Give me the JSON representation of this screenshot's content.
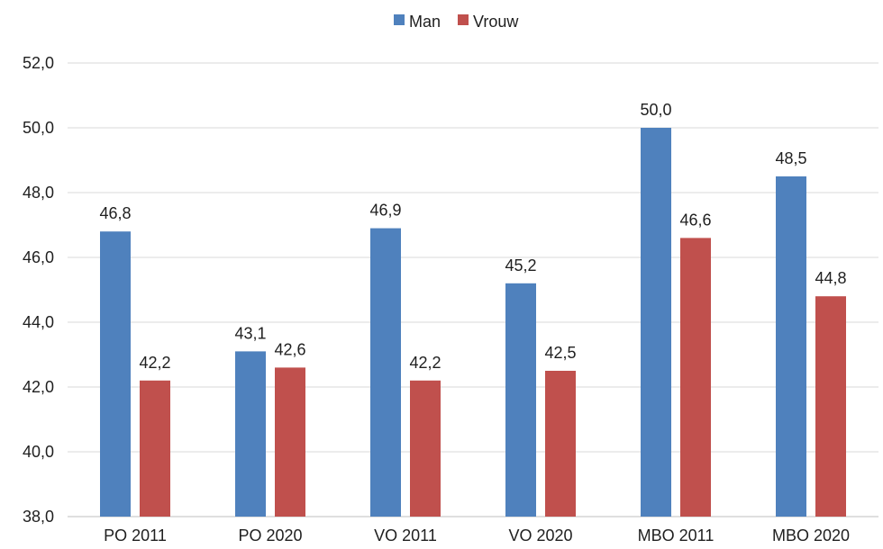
{
  "chart_data": {
    "type": "bar",
    "categories": [
      "PO 2011",
      "PO 2020",
      "VO 2011",
      "VO 2020",
      "MBO 2011",
      "MBO 2020"
    ],
    "series": [
      {
        "name": "Man",
        "color": "#4f81bd",
        "values": [
          46.8,
          43.1,
          46.9,
          45.2,
          50.0,
          48.5
        ],
        "labels": [
          "46,8",
          "43,1",
          "46,9",
          "45,2",
          "50,0",
          "48,5"
        ]
      },
      {
        "name": "Vrouw",
        "color": "#c0504d",
        "values": [
          42.2,
          42.6,
          42.2,
          42.5,
          46.6,
          44.8
        ],
        "labels": [
          "42,2",
          "42,6",
          "42,2",
          "42,5",
          "46,6",
          "44,8"
        ]
      }
    ],
    "ylim": [
      38,
      52
    ],
    "yticks": [
      38,
      40,
      42,
      44,
      46,
      48,
      50,
      52
    ],
    "ytick_labels": [
      "38,0",
      "40,0",
      "42,0",
      "44,0",
      "46,0",
      "48,0",
      "50,0",
      "52,0"
    ],
    "grid": true,
    "legend": "top-center",
    "gridline_color": "#d9d9d9"
  }
}
